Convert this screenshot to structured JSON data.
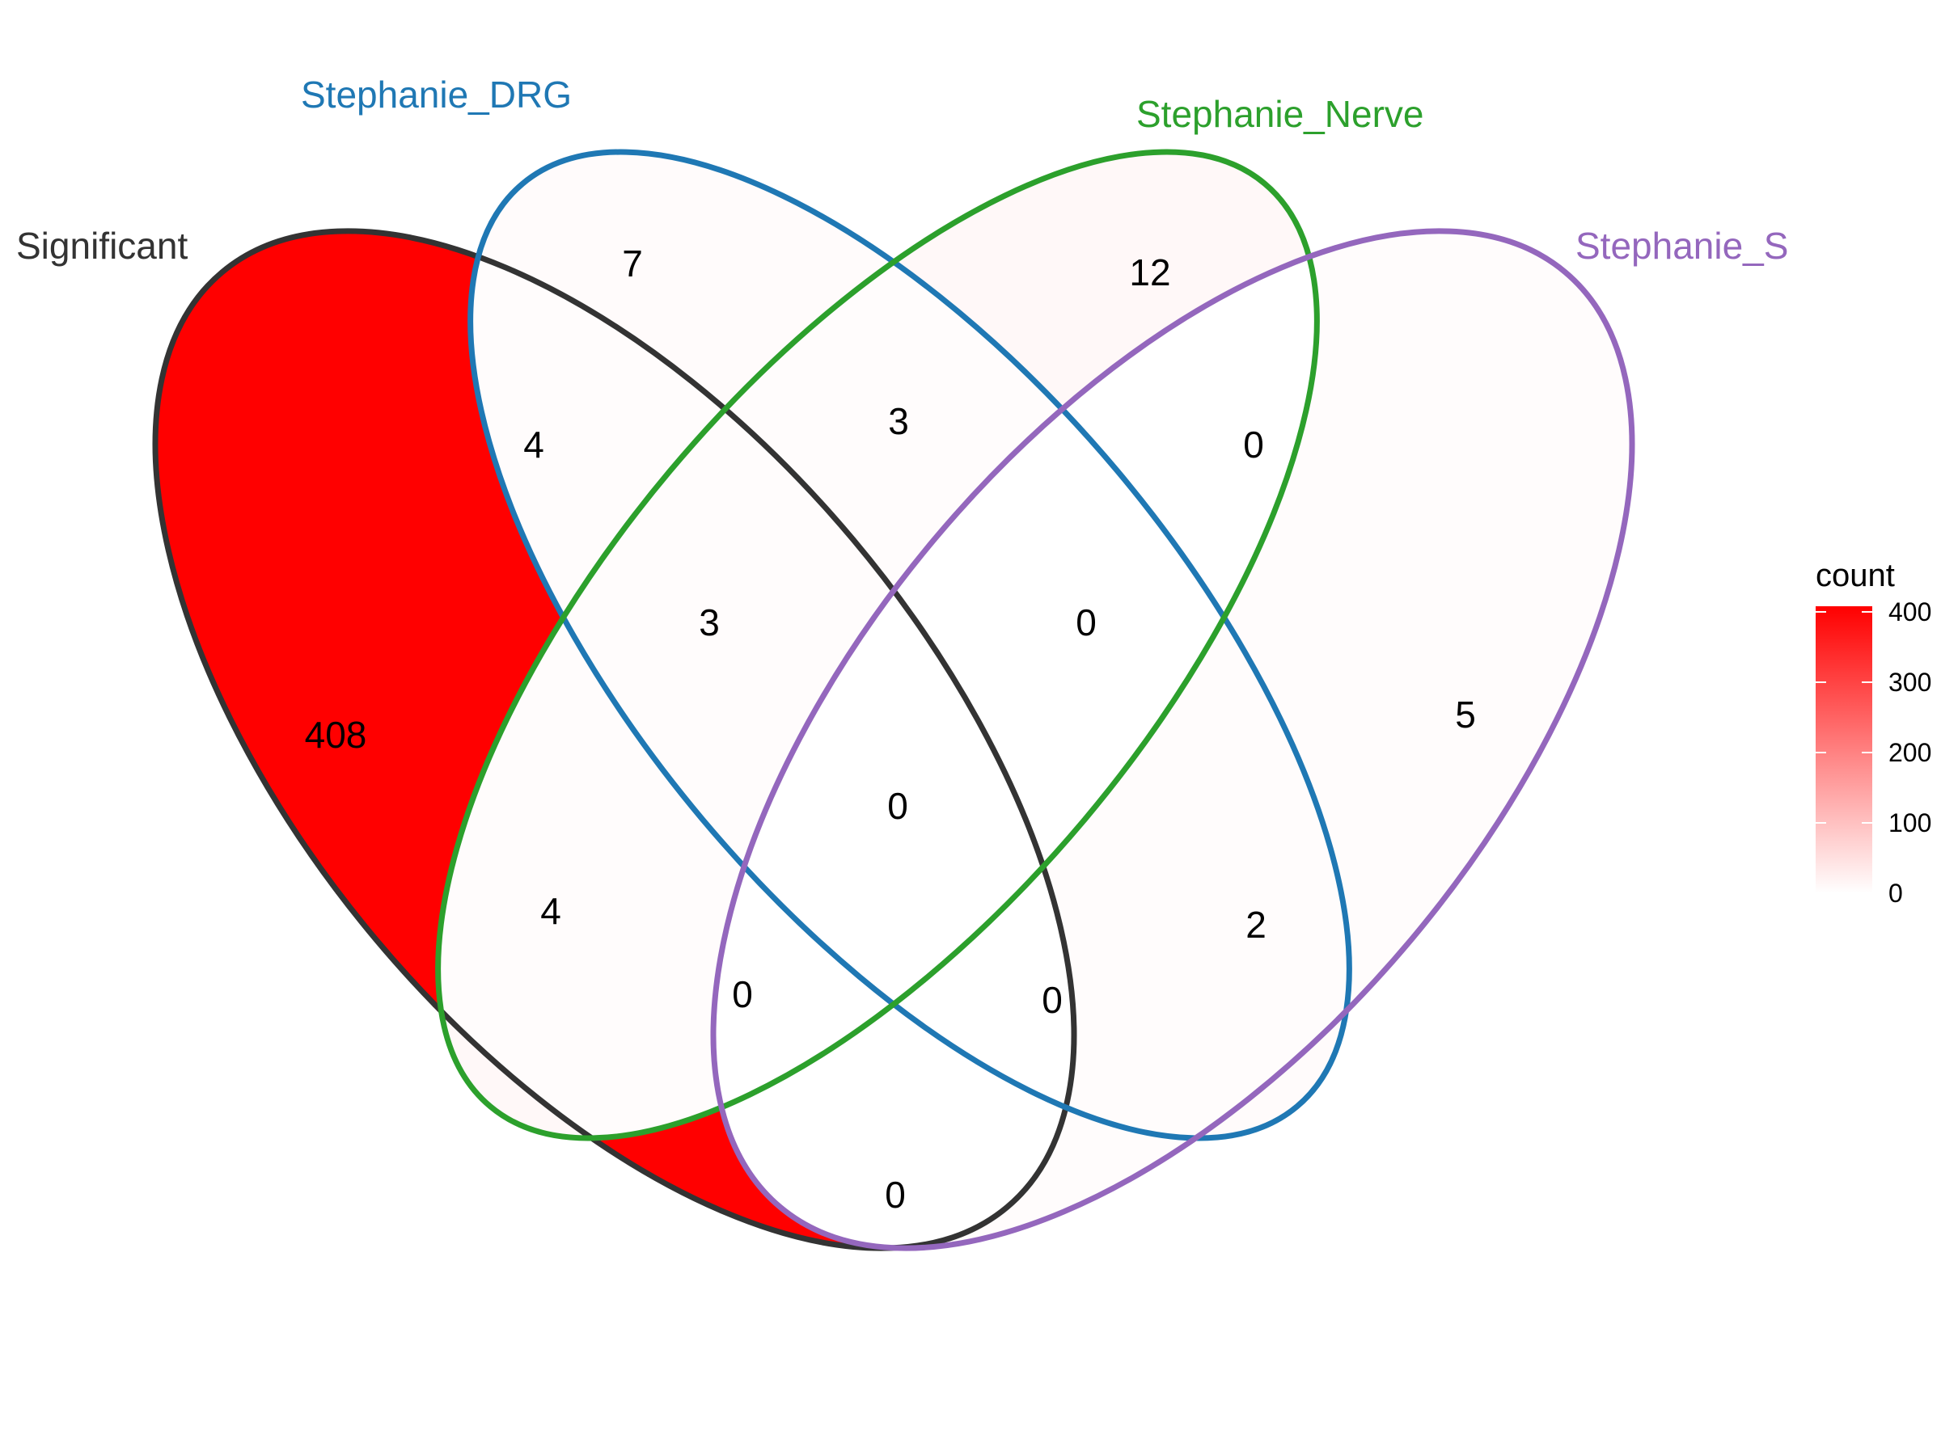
{
  "sets": [
    {
      "id": "significant",
      "label": "Significant",
      "color": "#333333"
    },
    {
      "id": "drg",
      "label": "Stephanie_DRG",
      "color": "#1F78B4"
    },
    {
      "id": "nerve",
      "label": "Stephanie_Nerve",
      "color": "#2CA02C"
    },
    {
      "id": "s",
      "label": "Stephanie_S",
      "color": "#9467BD"
    }
  ],
  "regions": [
    {
      "sets": [
        "significant"
      ],
      "count": 408
    },
    {
      "sets": [
        "drg"
      ],
      "count": 7
    },
    {
      "sets": [
        "nerve"
      ],
      "count": 12
    },
    {
      "sets": [
        "s"
      ],
      "count": 5
    },
    {
      "sets": [
        "significant",
        "drg"
      ],
      "count": 4
    },
    {
      "sets": [
        "drg",
        "nerve"
      ],
      "count": 3
    },
    {
      "sets": [
        "nerve",
        "s"
      ],
      "count": 0
    },
    {
      "sets": [
        "significant",
        "drg",
        "nerve"
      ],
      "count": 3
    },
    {
      "sets": [
        "drg",
        "nerve",
        "s"
      ],
      "count": 0
    },
    {
      "sets": [
        "significant",
        "drg",
        "nerve",
        "s"
      ],
      "count": 0
    },
    {
      "sets": [
        "significant",
        "nerve"
      ],
      "count": 4
    },
    {
      "sets": [
        "drg",
        "s"
      ],
      "count": 2
    },
    {
      "sets": [
        "significant",
        "nerve",
        "s"
      ],
      "count": 0
    },
    {
      "sets": [
        "significant",
        "drg",
        "s"
      ],
      "count": 0
    },
    {
      "sets": [
        "significant",
        "s"
      ],
      "count": 0
    }
  ],
  "legend": {
    "title": "count",
    "ticks": [
      "0",
      "100",
      "200",
      "300",
      "400"
    ],
    "color_low": "#FFFFFF",
    "color_high": "#FF0000",
    "max": 408
  }
}
